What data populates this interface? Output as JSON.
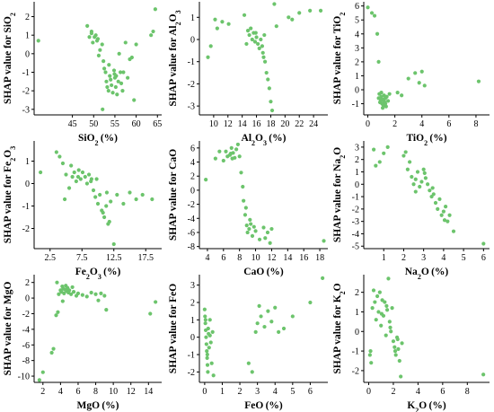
{
  "style": {
    "point_color": "#6cc46c"
  },
  "chart_data": [
    {
      "type": "scatter",
      "xlabel": "SiO2 (%)",
      "xlabel_main": "SiO",
      "xlabel_sub": "2",
      "xlabel_unit": "(%)",
      "ylabel": "SHAP value for SiO2",
      "ylabel_main": "SHAP value for SiO",
      "ylabel_sub": "2",
      "xlim": [
        36,
        66
      ],
      "ylim": [
        -3.3,
        2.8
      ],
      "xticks": [
        45,
        50,
        55,
        60,
        65
      ],
      "yticks": [
        -3,
        -2,
        -1,
        0,
        1,
        2
      ],
      "x": [
        37,
        48.5,
        49,
        49.5,
        49.8,
        50.2,
        50.5,
        51,
        51.5,
        52,
        52.3,
        52.5,
        52.8,
        53,
        53.2,
        53.5,
        53.8,
        54,
        54.2,
        54.5,
        54.8,
        55,
        55.2,
        55.5,
        55.8,
        56,
        56.3,
        56.5,
        57,
        57.5,
        58,
        58.5,
        59,
        59.5,
        60,
        49.5,
        50.8,
        51.2,
        53.6,
        54.9,
        56.8,
        63.5,
        64,
        64.5,
        52.1,
        55.3
      ],
      "y": [
        0.7,
        1.5,
        0.9,
        1.2,
        0.6,
        0.9,
        1.0,
        0.8,
        0.2,
        0.5,
        -0.4,
        -0.8,
        -1.0,
        -1.5,
        -1.8,
        -2.0,
        -1.2,
        -1.4,
        -1.7,
        -2.1,
        -0.9,
        -1.3,
        -1.8,
        -2.2,
        -1.5,
        0.0,
        -1.0,
        -1.6,
        -1.0,
        0.6,
        -1.3,
        -0.3,
        -0.2,
        -2.5,
        0.5,
        1.1,
        0.7,
        -0.1,
        -0.6,
        -1.1,
        -2.0,
        1.0,
        1.2,
        2.4,
        -3.0,
        -1.2
      ]
    },
    {
      "type": "scatter",
      "xlabel": "Al2O3 (%)",
      "xlabel_main": "Al",
      "xlabel_sub": "2",
      "xlabel_main2": "O",
      "xlabel_sub2": "3",
      "xlabel_unit": "(%)",
      "ylabel": "SHAP value for Al2O3",
      "ylabel_main": "SHAP value for Al",
      "ylabel_sub": "2",
      "ylabel_main2": "O",
      "ylabel_sub2": "3",
      "xlim": [
        8,
        26
      ],
      "ylim": [
        -3.4,
        1.7
      ],
      "xticks": [
        10,
        12,
        14,
        16,
        18,
        20,
        22,
        24
      ],
      "yticks": [
        -3,
        -2,
        -1,
        0,
        1
      ],
      "x": [
        9.2,
        9.6,
        10.2,
        10.5,
        11.2,
        12.1,
        14.3,
        14.8,
        15.0,
        15.2,
        15.4,
        15.6,
        15.8,
        16.0,
        16.2,
        16.4,
        16.6,
        16.8,
        17.0,
        17.2,
        17.4,
        17.6,
        17.8,
        18.0,
        18.2,
        18.5,
        18.8,
        20.5,
        21.0,
        22.0,
        23.5,
        25.0,
        14.6,
        16.9,
        17.1,
        15.9
      ],
      "y": [
        -0.8,
        -0.3,
        0.9,
        0.5,
        0.8,
        0.7,
        1.1,
        0.4,
        0.2,
        0.5,
        0.0,
        0.3,
        -0.1,
        0.1,
        -0.2,
        -0.4,
        0.0,
        -0.3,
        -0.8,
        -1.0,
        -1.5,
        -1.8,
        -2.2,
        -2.8,
        -3.2,
        1.6,
        0.6,
        1.0,
        0.9,
        1.2,
        1.3,
        1.3,
        -0.2,
        -0.6,
        0.2,
        0.3
      ]
    },
    {
      "type": "scatter",
      "xlabel": "TiO2 (%)",
      "xlabel_main": "TiO",
      "xlabel_sub": "2",
      "xlabel_unit": "(%)",
      "ylabel": "SHAP value for TiO2",
      "ylabel_main": "SHAP value for TiO",
      "ylabel_sub": "2",
      "xlim": [
        -0.3,
        9
      ],
      "ylim": [
        -1.8,
        6.3
      ],
      "xticks": [
        0,
        2,
        4,
        6,
        8
      ],
      "yticks": [
        -1,
        0,
        1,
        2,
        3,
        4,
        5,
        6
      ],
      "x": [
        0.0,
        0.3,
        0.5,
        0.7,
        0.8,
        0.85,
        0.9,
        0.95,
        1.0,
        1.05,
        1.1,
        1.15,
        1.2,
        1.25,
        1.3,
        1.35,
        1.4,
        1.5,
        1.6,
        2.2,
        2.5,
        3.0,
        3.5,
        3.8,
        4.0,
        4.2,
        8.2,
        0.9,
        1.1,
        1.3,
        1.0,
        0.8,
        1.2
      ],
      "y": [
        5.9,
        5.5,
        5.3,
        4.0,
        2.0,
        -0.3,
        -0.6,
        -0.8,
        -0.5,
        -1.0,
        -0.7,
        -1.1,
        -0.4,
        -0.9,
        -0.6,
        -1.2,
        -0.5,
        -0.8,
        -0.3,
        -0.2,
        -0.4,
        0.8,
        1.2,
        0.5,
        1.3,
        0.3,
        0.6,
        -0.9,
        -1.3,
        -1.0,
        -0.2,
        -0.6,
        -0.8
      ]
    },
    {
      "type": "scatter",
      "xlabel": "Fe2O3 (%)",
      "xlabel_main": "Fe",
      "xlabel_sub": "2",
      "xlabel_main2": "O",
      "xlabel_sub2": "3",
      "xlabel_unit": "(%)",
      "ylabel": "SHAP value for Fe2O3",
      "ylabel_main": "SHAP value for Fe",
      "ylabel_sub": "2",
      "ylabel_main2": "O",
      "ylabel_sub2": "3",
      "xlim": [
        0,
        20
      ],
      "ylim": [
        -2.9,
        1.9
      ],
      "xticks": [
        2.5,
        7.5,
        12.5,
        17.5
      ],
      "yticks": [
        -2,
        -1,
        0,
        1
      ],
      "x": [
        1.0,
        3.5,
        4.0,
        4.5,
        5.0,
        5.5,
        6.0,
        6.3,
        6.6,
        7.0,
        7.3,
        7.6,
        8.0,
        8.3,
        8.6,
        9.0,
        9.3,
        9.6,
        10.0,
        10.3,
        10.6,
        11.0,
        11.3,
        11.6,
        12.0,
        12.5,
        13.0,
        14.0,
        15.0,
        16.0,
        17.0,
        18.5,
        11.8,
        5.8,
        6.9,
        8.9,
        10.8,
        4.8,
        9.8,
        11.4
      ],
      "y": [
        0.5,
        1.4,
        1.2,
        0.9,
        0.4,
        -0.2,
        0.3,
        0.5,
        0.1,
        0.6,
        0.2,
        0.5,
        0.3,
        0.0,
        0.4,
        0.2,
        -0.3,
        -0.6,
        -0.9,
        -0.5,
        -1.2,
        -1.5,
        -1.0,
        -1.8,
        -0.8,
        -2.7,
        -0.5,
        -0.9,
        -0.4,
        -0.7,
        -0.5,
        -0.7,
        -1.7,
        0.8,
        0.3,
        0.1,
        -1.3,
        -0.7,
        0.2,
        -0.4
      ]
    },
    {
      "type": "scatter",
      "xlabel": "CaO (%)",
      "xlabel_main": "CaO",
      "xlabel_unit": "(%)",
      "ylabel": "SHAP value for CaO",
      "ylabel_main": "SHAP value for CaO",
      "xlim": [
        3,
        19
      ],
      "ylim": [
        -8.3,
        7
      ],
      "xticks": [
        4,
        6,
        8,
        10,
        12,
        14,
        16,
        18
      ],
      "yticks": [
        -8,
        -6,
        -4,
        -2,
        0,
        2,
        4,
        6
      ],
      "x": [
        3.8,
        5.0,
        5.5,
        6.0,
        6.3,
        6.5,
        6.8,
        7.0,
        7.2,
        7.4,
        7.6,
        7.8,
        8.0,
        8.2,
        8.4,
        8.5,
        8.7,
        8.9,
        9.0,
        9.2,
        9.4,
        9.6,
        9.8,
        10.0,
        10.5,
        11.0,
        11.5,
        11.8,
        12.0,
        18.5,
        7.1,
        6.9,
        8.8,
        9.3,
        11.2
      ],
      "y": [
        1.5,
        4.5,
        5.5,
        4.2,
        5.5,
        4.8,
        5.0,
        6.0,
        5.3,
        4.6,
        5.8,
        6.5,
        4.8,
        2.5,
        0.5,
        -1.5,
        -3.5,
        -5.0,
        -6.0,
        -5.5,
        -4.8,
        -6.5,
        -5.2,
        -5.8,
        -7.0,
        -5.3,
        -6.0,
        -7.5,
        -5.5,
        -7.2,
        4.5,
        5.2,
        -2.5,
        -4.2,
        -6.8
      ]
    },
    {
      "type": "scatter",
      "xlabel": "Na2O (%)",
      "xlabel_main": "Na",
      "xlabel_sub": "2",
      "xlabel_main2": "O",
      "xlabel_sub2": "",
      "xlabel_unit": "(%)",
      "ylabel": "SHAP value for Na2O",
      "ylabel_main": "SHAP value for Na",
      "ylabel_sub": "2",
      "ylabel_main2": "O",
      "xlim": [
        0,
        6.3
      ],
      "ylim": [
        -5.2,
        3.5
      ],
      "xticks": [
        1,
        2,
        3,
        4,
        5,
        6
      ],
      "yticks": [
        -5,
        -4,
        -3,
        -2,
        -1,
        0,
        1,
        2,
        3
      ],
      "x": [
        0.5,
        0.6,
        0.8,
        1.0,
        1.2,
        2.0,
        2.1,
        2.2,
        2.3,
        2.4,
        2.5,
        2.6,
        2.7,
        2.8,
        2.9,
        3.0,
        3.1,
        3.2,
        3.3,
        3.4,
        3.5,
        3.6,
        3.7,
        3.8,
        3.9,
        4.0,
        4.1,
        4.2,
        4.3,
        4.5,
        6.0,
        2.6,
        3.05,
        3.45,
        4.05
      ],
      "y": [
        2.8,
        1.5,
        1.8,
        2.5,
        3.0,
        2.3,
        2.6,
        1.2,
        1.8,
        0.6,
        0.0,
        0.4,
        1.0,
        -0.2,
        0.2,
        1.2,
        0.5,
        0.0,
        -0.5,
        -1.0,
        -0.8,
        -1.5,
        -2.0,
        -1.2,
        -2.5,
        -2.2,
        -1.8,
        -3.0,
        -2.5,
        -3.8,
        -4.8,
        -0.6,
        0.9,
        -0.3,
        -2.9
      ]
    },
    {
      "type": "scatter",
      "xlabel": "MgO (%)",
      "xlabel_main": "MgO",
      "xlabel_unit": "(%)",
      "ylabel": "SHAP value for MgO",
      "ylabel_main": "SHAP value for MgO",
      "xlim": [
        1,
        15.5
      ],
      "ylim": [
        -10.8,
        3
      ],
      "xticks": [
        2,
        4,
        6,
        8,
        10,
        12,
        14
      ],
      "yticks": [
        -10,
        -8,
        -6,
        -4,
        -2,
        0,
        2
      ],
      "x": [
        1.6,
        2.0,
        3.0,
        3.2,
        3.5,
        3.7,
        3.8,
        4.0,
        4.1,
        4.2,
        4.3,
        4.4,
        4.5,
        4.6,
        4.7,
        4.8,
        4.9,
        5.0,
        5.2,
        5.5,
        5.8,
        6.0,
        6.5,
        7.0,
        7.5,
        8.0,
        8.3,
        8.6,
        9.0,
        9.2,
        14.2,
        14.8,
        3.6,
        4.25,
        5.35
      ],
      "y": [
        -10.5,
        -9.5,
        -7.0,
        -6.5,
        -2.2,
        -1.8,
        0.5,
        1.0,
        0.8,
        1.5,
        1.2,
        0.6,
        1.1,
        1.6,
        0.9,
        1.3,
        0.7,
        1.0,
        0.5,
        0.8,
        0.3,
        0.6,
        0.4,
        0.2,
        0.7,
        0.5,
        -0.3,
        0.6,
        0.3,
        -1.5,
        -2.0,
        -0.5,
        2.0,
        -0.4,
        1.4
      ]
    },
    {
      "type": "scatter",
      "xlabel": "FeO (%)",
      "xlabel_main": "FeO",
      "xlabel_unit": "(%)",
      "ylabel": "SHAP value for FeO",
      "ylabel_main": "SHAP value for FeO",
      "xlim": [
        -0.3,
        7
      ],
      "ylim": [
        -2.6,
        3.6
      ],
      "xticks": [
        0,
        1,
        2,
        3,
        4,
        5,
        6
      ],
      "yticks": [
        -2,
        -1,
        0,
        1,
        2,
        3
      ],
      "x": [
        0.0,
        0.02,
        0.04,
        0.06,
        0.08,
        0.1,
        0.12,
        0.14,
        0.16,
        0.18,
        0.2,
        0.22,
        0.25,
        0.3,
        0.35,
        0.4,
        0.45,
        0.5,
        2.5,
        2.7,
        2.9,
        3.0,
        3.1,
        3.2,
        3.4,
        3.6,
        3.8,
        4.0,
        4.2,
        4.5,
        5.0,
        6.0,
        6.7,
        0.05,
        0.15,
        0.3
      ],
      "y": [
        1.6,
        1.2,
        0.8,
        0.4,
        0.0,
        -0.4,
        -0.8,
        -1.2,
        -1.6,
        -2.0,
        0.5,
        0.2,
        -0.6,
        1.0,
        -0.3,
        -1.5,
        0.3,
        -2.2,
        -1.5,
        -2.0,
        0.3,
        0.8,
        1.8,
        1.2,
        0.6,
        1.5,
        0.9,
        1.7,
        0.3,
        0.5,
        1.2,
        2.0,
        3.4,
        1.0,
        -1.0,
        0.1
      ]
    },
    {
      "type": "scatter",
      "xlabel": "K2O (%)",
      "xlabel_main": "K",
      "xlabel_sub": "2",
      "xlabel_main2": "O",
      "xlabel_unit": "(%)",
      "ylabel": "SHAP value for K2O",
      "ylabel_main": "SHAP value for K",
      "ylabel_sub": "2",
      "ylabel_main2": "O",
      "xlim": [
        -0.4,
        9.8
      ],
      "ylim": [
        -2.6,
        2.9
      ],
      "xticks": [
        0,
        2,
        4,
        6,
        8
      ],
      "yticks": [
        -2,
        -1,
        0,
        1,
        2
      ],
      "x": [
        0.1,
        0.2,
        0.3,
        0.4,
        0.5,
        0.6,
        0.7,
        0.8,
        0.9,
        1.0,
        1.1,
        1.2,
        1.3,
        1.4,
        1.5,
        1.6,
        1.7,
        1.8,
        1.9,
        2.0,
        2.1,
        2.2,
        2.3,
        2.4,
        2.5,
        2.6,
        2.7,
        9.3,
        0.15,
        1.45,
        1.75,
        2.15,
        1.05,
        2.35
      ],
      "y": [
        -1.2,
        -1.6,
        1.2,
        2.1,
        1.5,
        0.6,
        1.8,
        1.0,
        2.0,
        0.3,
        1.6,
        0.8,
        1.5,
        -0.2,
        1.1,
        2.7,
        0.5,
        0.0,
        1.2,
        -0.5,
        -0.8,
        -1.2,
        -0.3,
        -0.9,
        -1.5,
        -2.3,
        -0.6,
        -2.2,
        -1.0,
        1.3,
        0.2,
        -1.0,
        0.9,
        -0.4
      ]
    }
  ]
}
